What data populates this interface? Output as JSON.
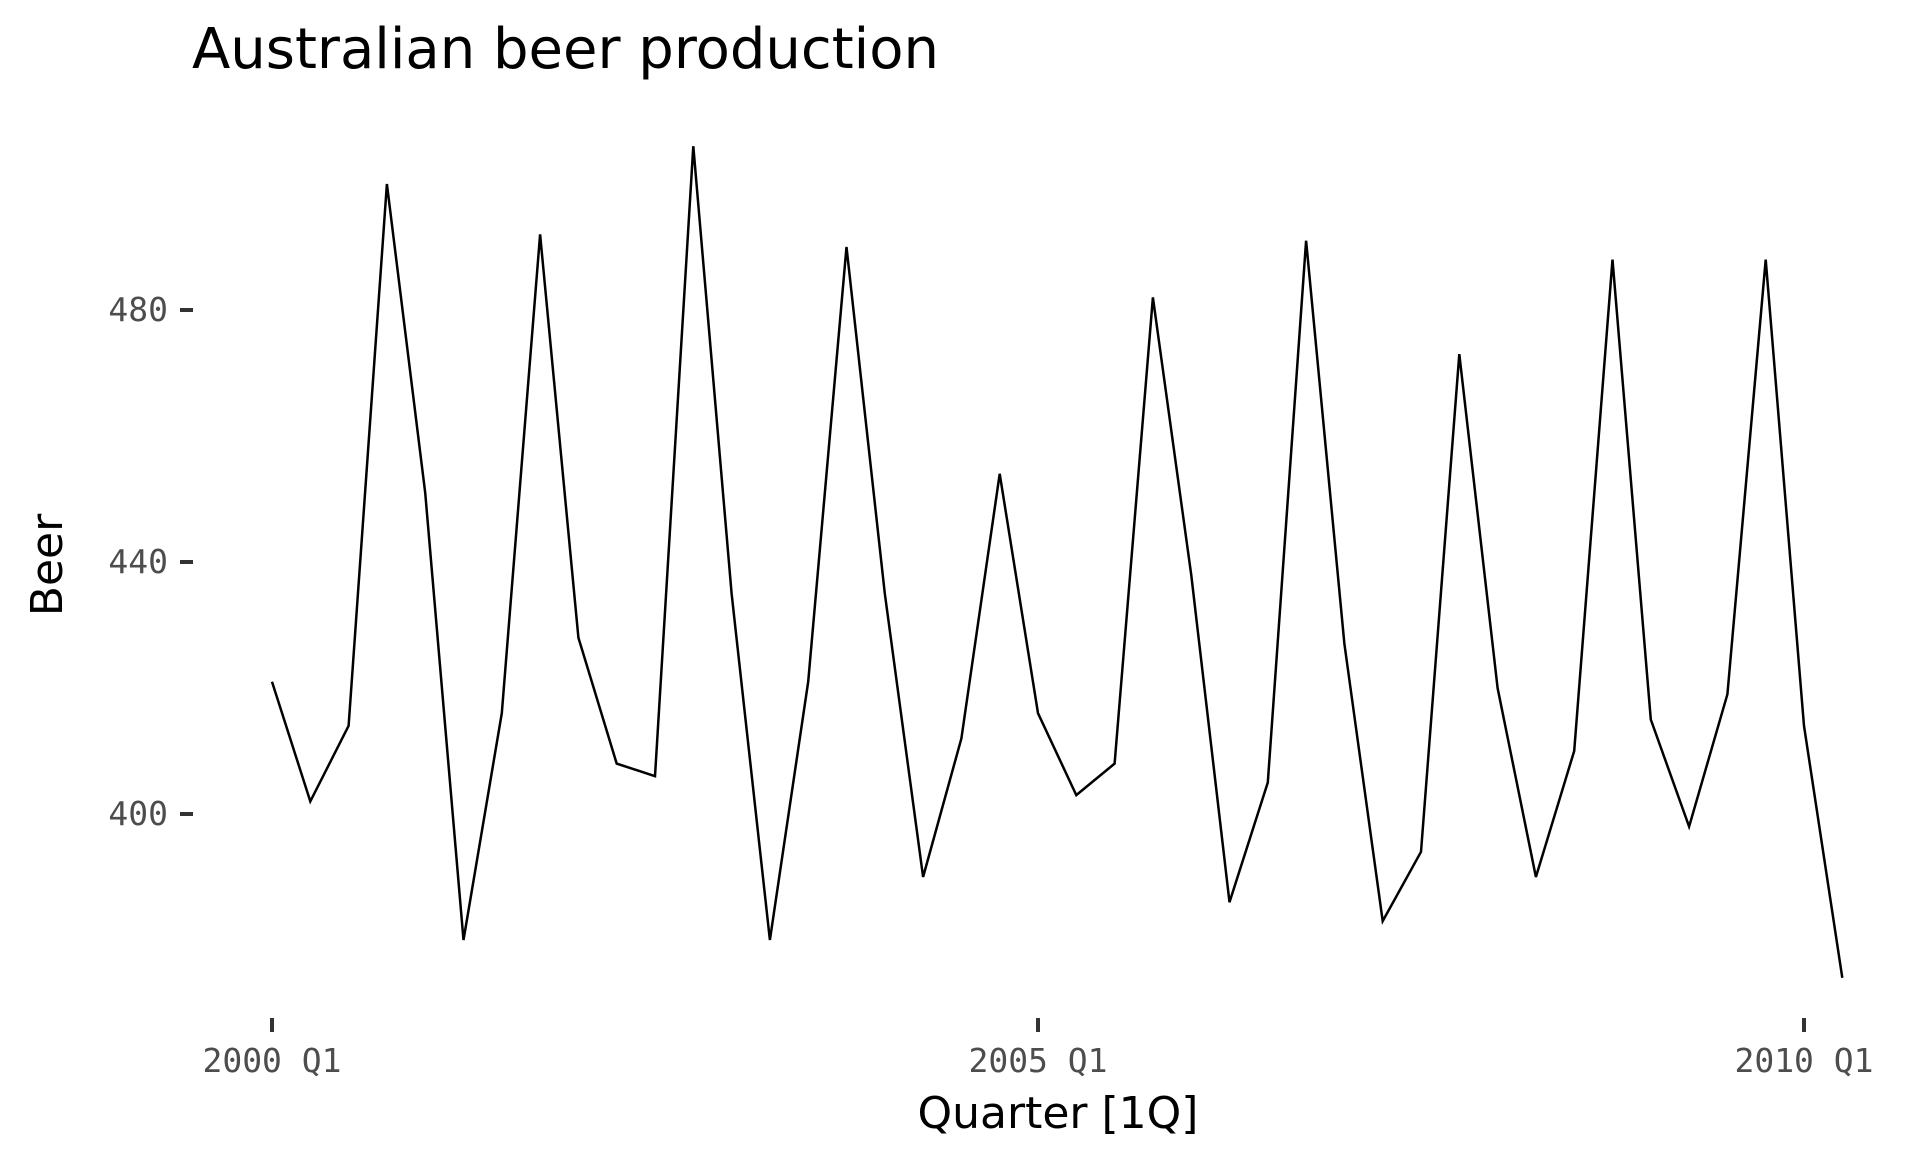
{
  "chart_data": {
    "type": "line",
    "title": "Australian beer production",
    "xlabel": "Quarter [1Q]",
    "ylabel": "Beer",
    "x_start": "2000 Q1",
    "x_frequency": "quarterly",
    "x_ticks": [
      {
        "label": "2000 Q1",
        "index": 0
      },
      {
        "label": "2005 Q1",
        "index": 20
      },
      {
        "label": "2010 Q1",
        "index": 40
      }
    ],
    "y_ticks": [
      400,
      440,
      480
    ],
    "ylim": [
      369,
      508
    ],
    "grid": false,
    "series": [
      {
        "values": [
          421,
          402,
          414,
          500,
          451,
          380,
          416,
          492,
          428,
          408,
          406,
          506,
          435,
          380,
          421,
          490,
          435,
          390,
          412,
          454,
          416,
          403,
          408,
          482,
          438,
          386,
          405,
          491,
          427,
          383,
          394,
          473,
          420,
          390,
          410,
          488,
          415,
          398,
          419,
          488,
          414,
          374
        ]
      }
    ]
  }
}
